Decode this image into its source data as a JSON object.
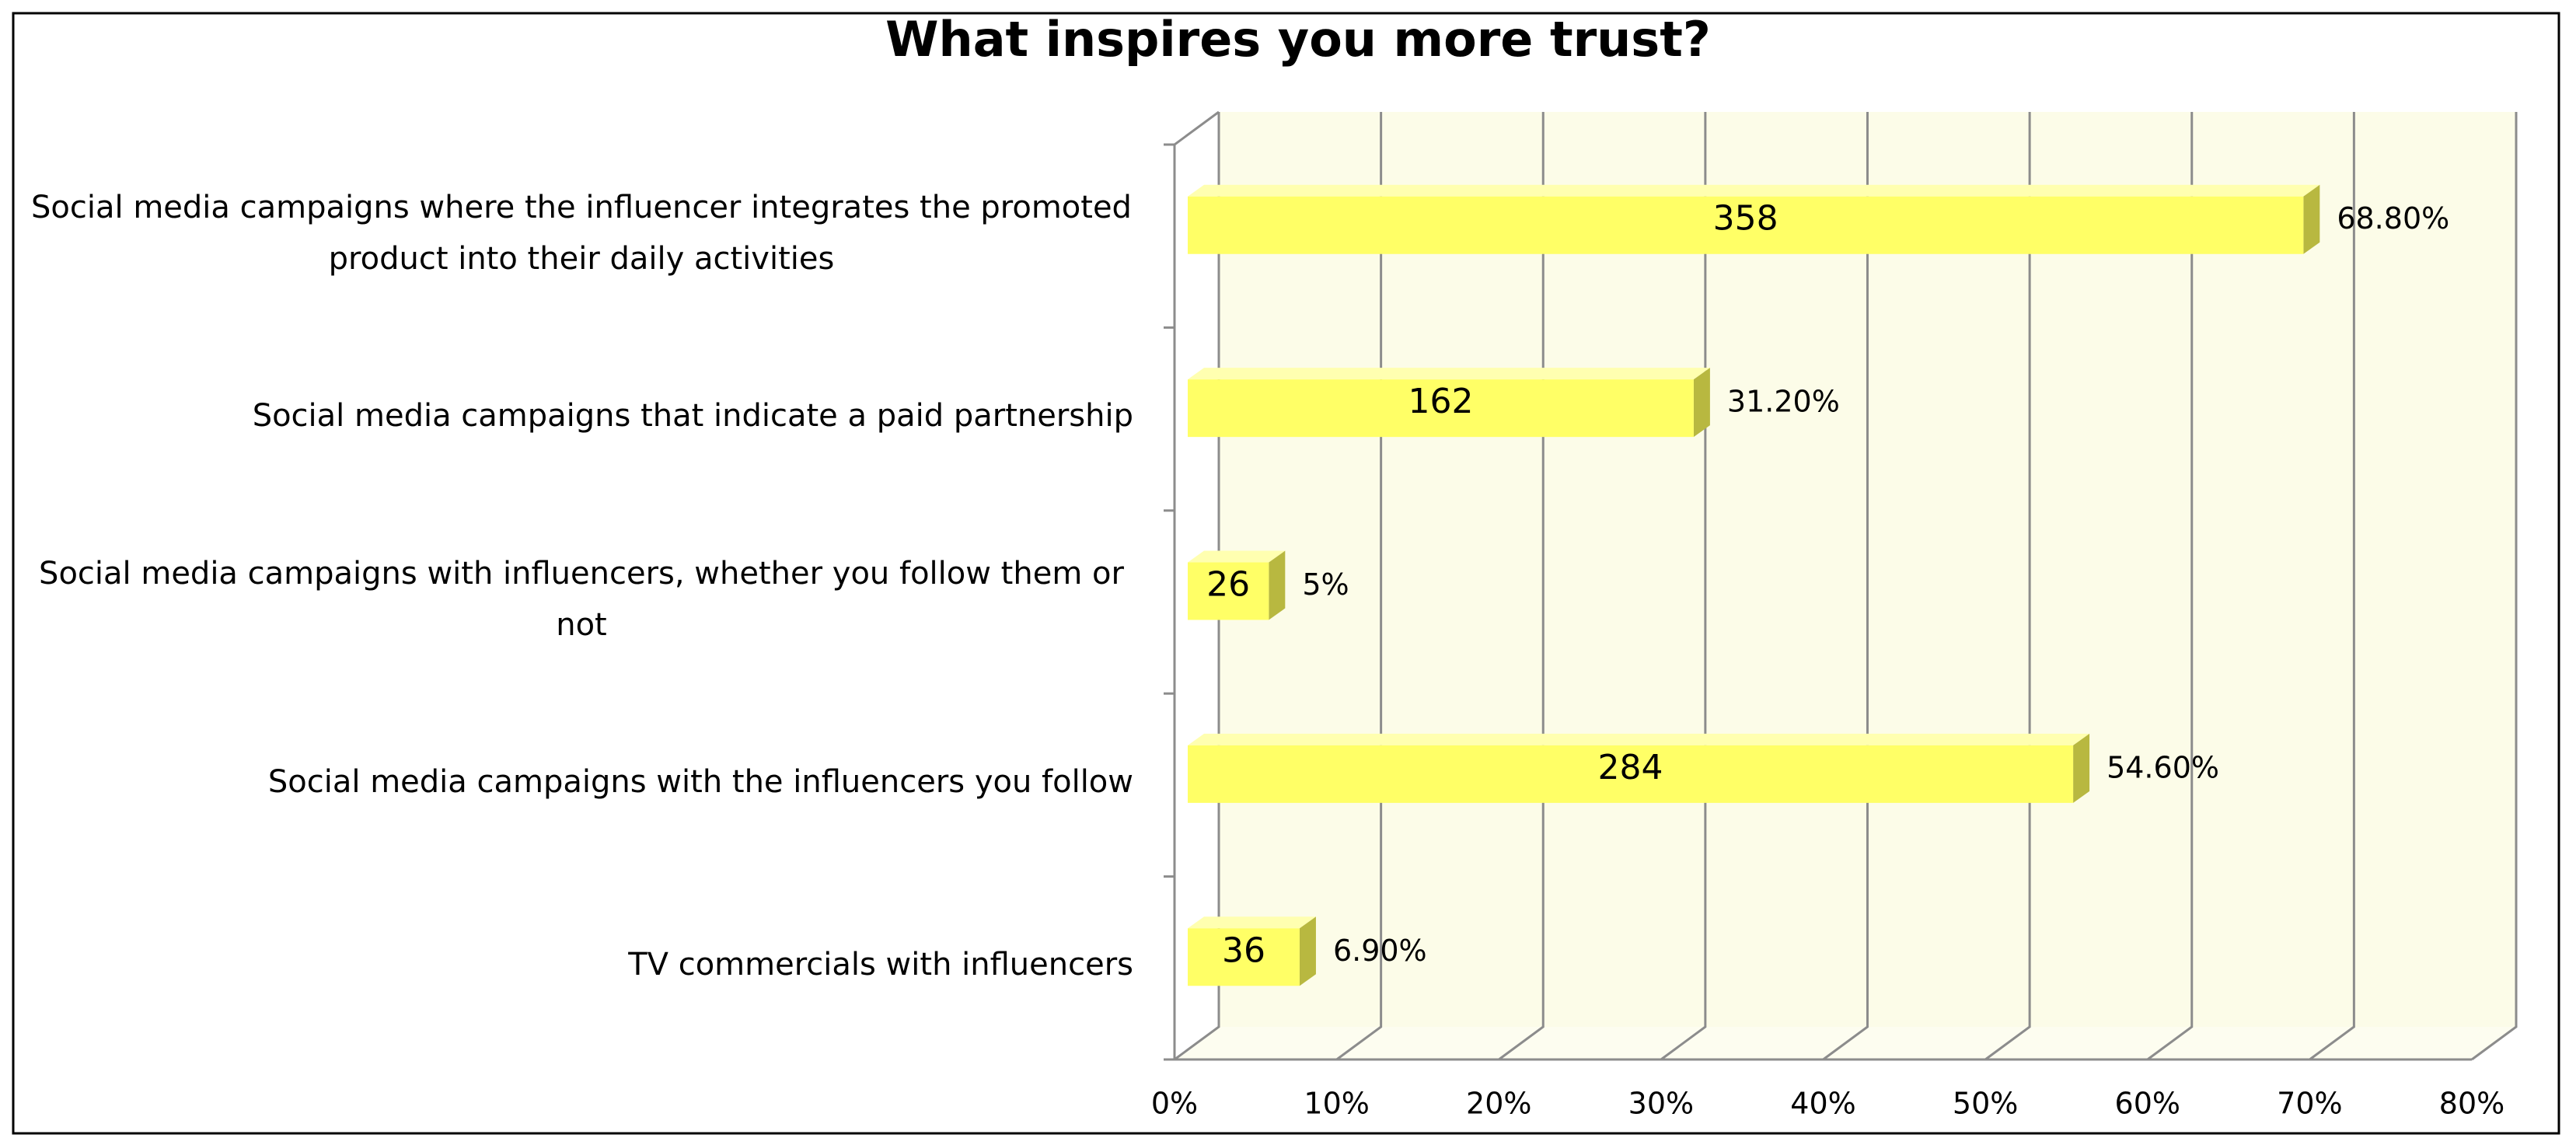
{
  "chart_data": {
    "type": "bar3d",
    "title": "What inspires you more trust?",
    "categories": [
      "Social media campaigns where the influencer integrates the promoted product into their daily activities",
      "Social media campaigns that indicate a paid partnership",
      "Social media campaigns with influencers, whether you follow them or not",
      "Social media campaigns with the influencers you follow",
      "TV commercials with influencers"
    ],
    "values": [
      68.8,
      31.2,
      5,
      54.6,
      6.9
    ],
    "value_labels": [
      "68.80%",
      "31.20%",
      "5%",
      "54.60%",
      "6.90%"
    ],
    "counts": [
      358,
      162,
      26,
      284,
      36
    ],
    "color": "#ffff66",
    "xlim": [
      0,
      80
    ],
    "xticks": [
      {
        "value": 0,
        "label": "0%"
      },
      {
        "value": 10,
        "label": "10%"
      },
      {
        "value": 20,
        "label": "20%"
      },
      {
        "value": 30,
        "label": "30%"
      },
      {
        "value": 40,
        "label": "40%"
      },
      {
        "value": 50,
        "label": "50%"
      },
      {
        "value": 60,
        "label": "60%"
      },
      {
        "value": 70,
        "label": "70%"
      },
      {
        "value": 80,
        "label": "80%"
      }
    ],
    "grid": true
  }
}
